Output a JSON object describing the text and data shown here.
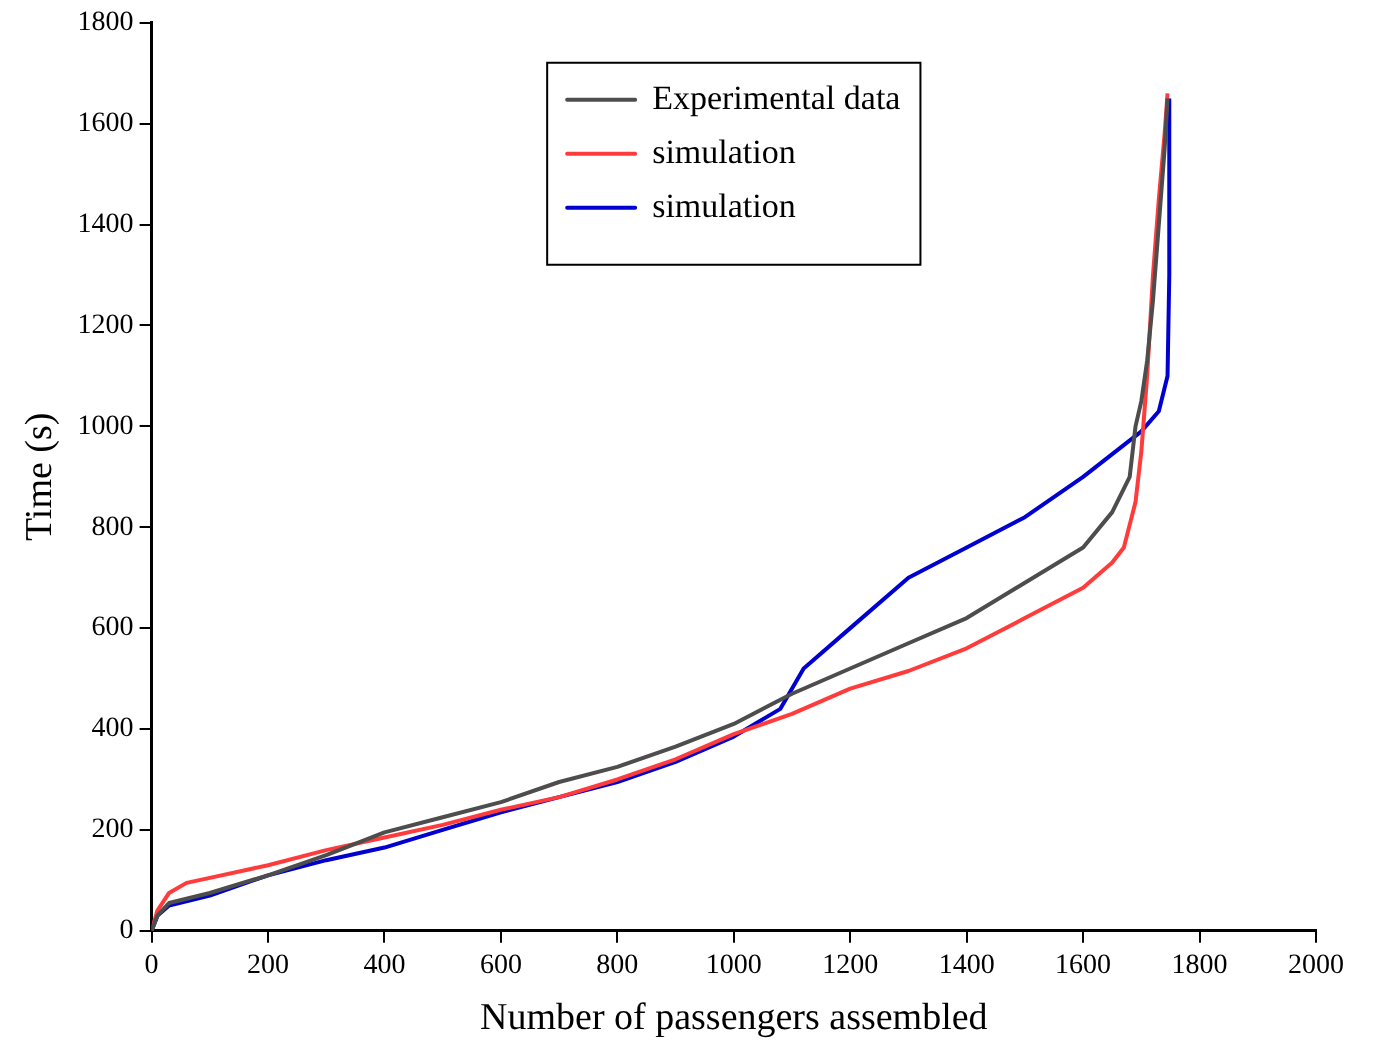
{
  "chart_data": {
    "type": "line",
    "xlabel": "Number of passengers assembled",
    "ylabel": "Time (s)",
    "xlim": [
      0,
      2000
    ],
    "xticks": [
      0,
      200,
      400,
      600,
      800,
      1000,
      1200,
      1400,
      1600,
      1800,
      2000
    ],
    "ylim": [
      0,
      1800
    ],
    "yticks": [
      0,
      200,
      400,
      600,
      800,
      1000,
      1200,
      1400,
      1600,
      1800
    ],
    "grid": false,
    "legend": "top",
    "marker": "none",
    "line_style": "solid",
    "series": [
      {
        "name": "Experimental data",
        "color": "#4d4d4d",
        "x": [
          0,
          10,
          30,
          100,
          200,
          300,
          400,
          500,
          600,
          700,
          800,
          900,
          1000,
          1100,
          1200,
          1300,
          1400,
          1500,
          1600,
          1650,
          1680,
          1690,
          1700,
          1710,
          1720,
          1730,
          1740,
          1745
        ],
        "values": [
          0,
          30,
          55,
          75,
          110,
          150,
          195,
          225,
          255,
          295,
          325,
          365,
          410,
          470,
          520,
          570,
          620,
          690,
          760,
          830,
          900,
          1000,
          1050,
          1130,
          1250,
          1400,
          1550,
          1650
        ]
      },
      {
        "name": "simulation",
        "color": "#ff3b3b",
        "x": [
          0,
          10,
          30,
          60,
          100,
          200,
          300,
          400,
          500,
          600,
          700,
          800,
          900,
          1000,
          1100,
          1200,
          1300,
          1400,
          1500,
          1600,
          1650,
          1670,
          1690,
          1700,
          1710,
          1720,
          1730,
          1740,
          1745
        ],
        "values": [
          0,
          40,
          75,
          95,
          105,
          130,
          160,
          185,
          210,
          240,
          265,
          300,
          340,
          390,
          430,
          480,
          515,
          560,
          620,
          680,
          730,
          760,
          850,
          950,
          1100,
          1300,
          1450,
          1580,
          1660
        ]
      },
      {
        "name": "simulation",
        "color": "#0000d0",
        "x": [
          0,
          10,
          30,
          100,
          200,
          300,
          400,
          500,
          600,
          700,
          800,
          900,
          1000,
          1080,
          1120,
          1200,
          1300,
          1400,
          1500,
          1600,
          1700,
          1730,
          1745,
          1748,
          1748
        ],
        "values": [
          0,
          30,
          50,
          70,
          110,
          140,
          165,
          200,
          235,
          265,
          295,
          335,
          385,
          440,
          520,
          600,
          700,
          760,
          820,
          900,
          990,
          1030,
          1100,
          1300,
          1650
        ]
      }
    ]
  }
}
